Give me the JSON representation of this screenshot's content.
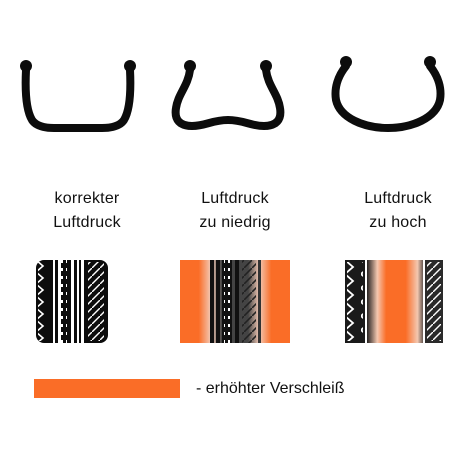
{
  "colors": {
    "tire": "#0c0c0c",
    "wear_highlight": "#fa6d27",
    "background": "#ffffff"
  },
  "panels": [
    {
      "id": "correct",
      "label_line1": "korrekter",
      "label_line2": "Luftdruck",
      "profile_shape": "flat-base",
      "wear_zones": "none"
    },
    {
      "id": "low",
      "label_line1": "Luftdruck",
      "label_line2": "zu niedrig",
      "profile_shape": "sagging-shoulders",
      "wear_zones": "both-shoulders"
    },
    {
      "id": "high",
      "label_line1": "Luftdruck",
      "label_line2": "zu hoch",
      "profile_shape": "rounded-center",
      "wear_zones": "center"
    }
  ],
  "legend": {
    "label": "- erhöhter Verschleiß"
  }
}
